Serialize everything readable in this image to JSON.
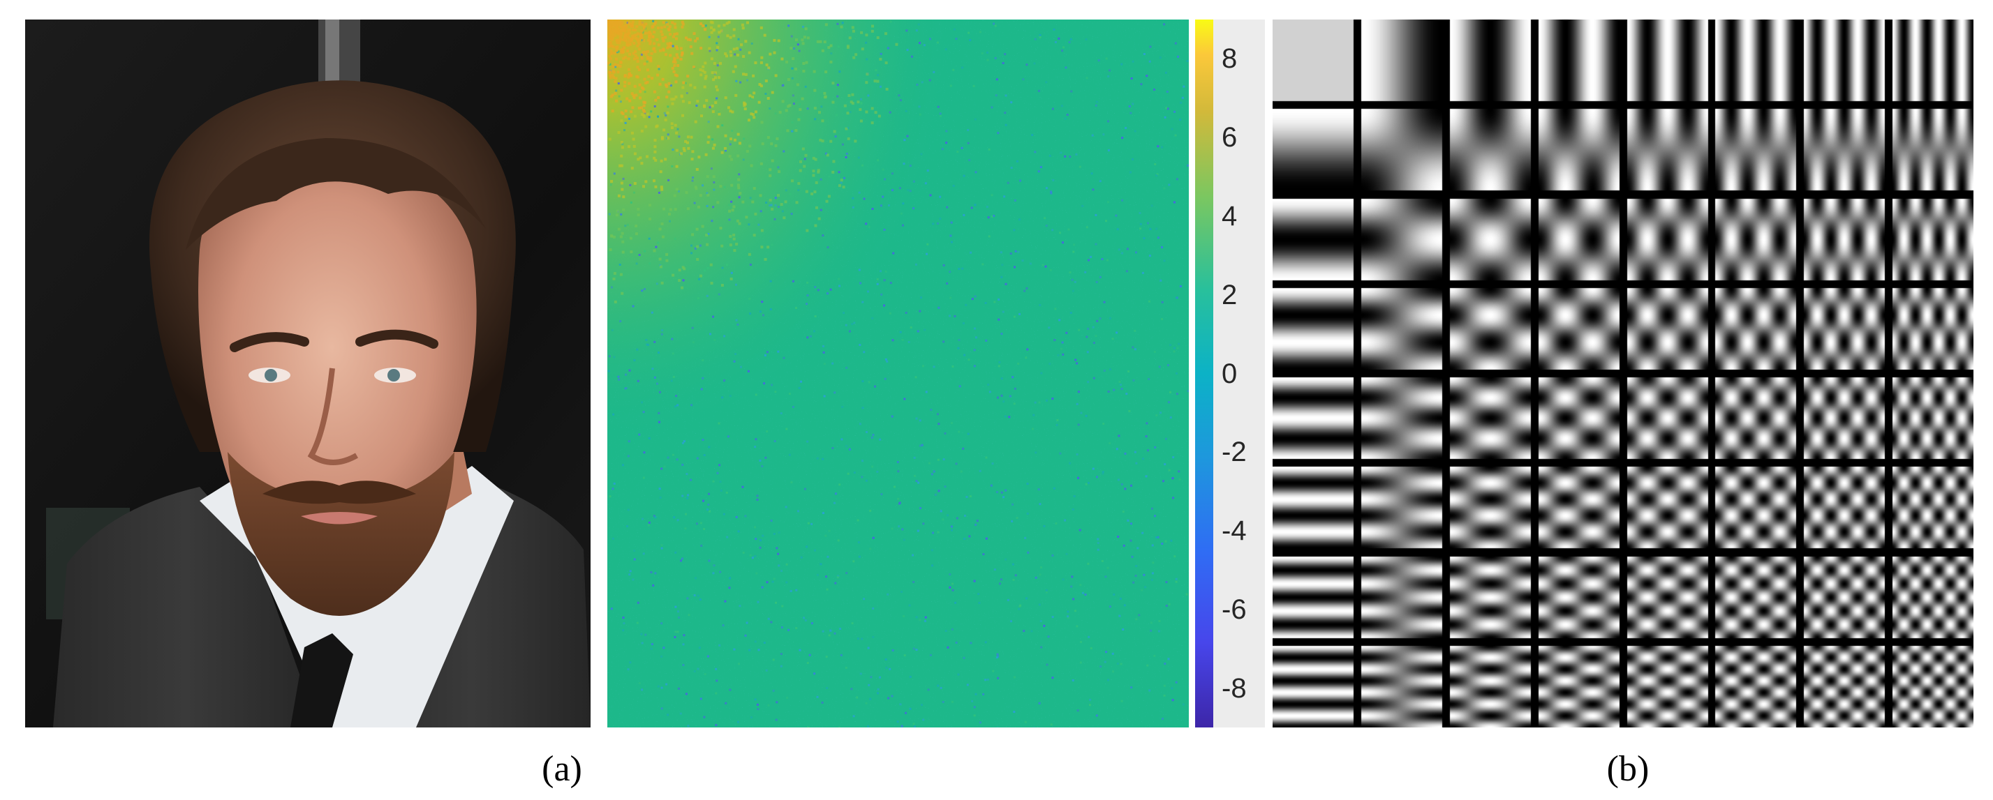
{
  "colorbar": {
    "ticks": [
      "8",
      "6",
      "4",
      "2",
      "0",
      "-2",
      "-4",
      "-6",
      "-8"
    ],
    "range": [
      -9,
      9
    ],
    "colormap": "parula"
  },
  "dct_basis": {
    "grid_size": 8
  },
  "captions": {
    "a": "(a)",
    "b": "(b)"
  },
  "colors": {
    "heatmap_background": "#1db88a",
    "heatmap_hot_corner": "#e0b020",
    "colorbar_low": "#3d26a8",
    "colorbar_high": "#f9fb15",
    "separator": "#000000"
  }
}
